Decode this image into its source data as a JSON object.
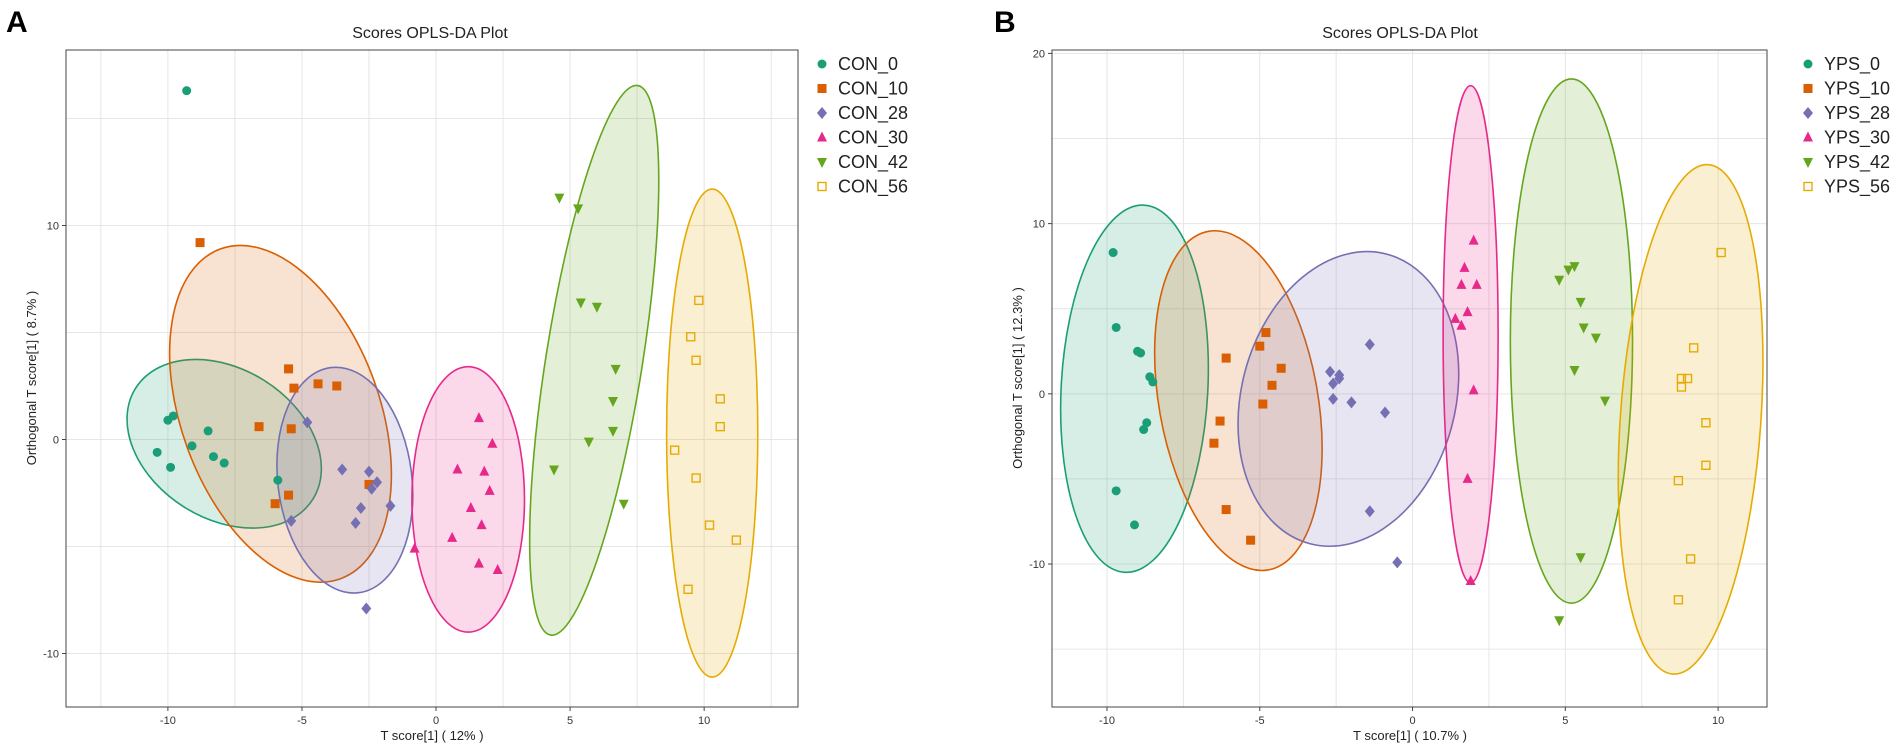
{
  "chart_data": [
    {
      "panel": "A",
      "type": "scatter",
      "title": "Scores OPLS-DA Plot",
      "xlabel": "T score[1] ( 12% )",
      "ylabel": "Orthogonal T score[1] ( 8.7% )",
      "xlim": [
        -13.8,
        13.5
      ],
      "ylim": [
        -12.5,
        18.2
      ],
      "xticks": [
        -10,
        -5,
        0,
        5,
        10
      ],
      "yticks": [
        -10,
        0,
        10
      ],
      "xtick_labels": [
        "-10",
        "-5",
        "0",
        "5",
        "10"
      ],
      "ytick_labels": [
        "-10",
        "0",
        "10"
      ],
      "series": [
        {
          "name": "CON_0",
          "color": "#1b9e77",
          "marker": "circle",
          "points": [
            [
              -9.3,
              16.3
            ],
            [
              -10,
              0.9
            ],
            [
              -9.8,
              1.1
            ],
            [
              -8.5,
              0.4
            ],
            [
              -10.4,
              -0.6
            ],
            [
              -9.9,
              -1.3
            ],
            [
              -9.1,
              -0.3
            ],
            [
              -8.3,
              -0.8
            ],
            [
              -7.9,
              -1.1
            ],
            [
              -5.9,
              -1.9
            ]
          ],
          "ellipse": {
            "cx": -7.9,
            "cy": -0.2,
            "rx": 3.9,
            "ry": 3.5,
            "angle_deg": -32
          }
        },
        {
          "name": "CON_10",
          "color": "#d95f02",
          "marker": "square",
          "points": [
            [
              -8.8,
              9.2
            ],
            [
              -5.5,
              3.3
            ],
            [
              -5.3,
              2.4
            ],
            [
              -4.4,
              2.6
            ],
            [
              -3.7,
              2.5
            ],
            [
              -6.6,
              0.6
            ],
            [
              -5.4,
              0.5
            ],
            [
              -5.5,
              -2.6
            ],
            [
              -6,
              -3
            ],
            [
              -2.5,
              -2.1
            ]
          ],
          "ellipse": {
            "cx": -5.8,
            "cy": 1.2,
            "rx": 3.7,
            "ry": 8.2,
            "angle_deg": 20
          }
        },
        {
          "name": "CON_28",
          "color": "#7570b3",
          "marker": "diamond",
          "points": [
            [
              -4.8,
              0.8
            ],
            [
              -3.5,
              -1.4
            ],
            [
              -2.5,
              -1.5
            ],
            [
              -2.4,
              -2.3
            ],
            [
              -2.2,
              -2
            ],
            [
              -2.8,
              -3.2
            ],
            [
              -3,
              -3.9
            ],
            [
              -1.7,
              -3.1
            ],
            [
              -5.4,
              -3.8
            ],
            [
              -2.6,
              -7.9
            ]
          ],
          "ellipse": {
            "cx": -3.4,
            "cy": -1.9,
            "rx": 2.5,
            "ry": 5.3,
            "angle_deg": 7
          }
        },
        {
          "name": "CON_30",
          "color": "#e7298a",
          "marker": "triangle-up",
          "points": [
            [
              1.6,
              1
            ],
            [
              2.1,
              -0.2
            ],
            [
              0.8,
              -1.4
            ],
            [
              1.8,
              -1.5
            ],
            [
              2,
              -2.4
            ],
            [
              1.3,
              -3.2
            ],
            [
              1.7,
              -4
            ],
            [
              0.6,
              -4.6
            ],
            [
              1.6,
              -5.8
            ],
            [
              2.3,
              -6.1
            ],
            [
              -0.8,
              -5.1
            ]
          ],
          "ellipse": {
            "cx": 1.2,
            "cy": -2.8,
            "rx": 2.1,
            "ry": 6.2,
            "angle_deg": 0
          }
        },
        {
          "name": "CON_42",
          "color": "#66a61e",
          "marker": "triangle-down",
          "points": [
            [
              4.6,
              11.3
            ],
            [
              5.3,
              10.8
            ],
            [
              5.4,
              6.4
            ],
            [
              6,
              6.2
            ],
            [
              6.7,
              3.3
            ],
            [
              6.6,
              1.8
            ],
            [
              6.6,
              0.4
            ],
            [
              5.7,
              -0.1
            ],
            [
              4.4,
              -1.4
            ],
            [
              7,
              -3
            ]
          ],
          "ellipse": {
            "cx": 5.9,
            "cy": 3.7,
            "rx": 1.8,
            "ry": 13.0,
            "angle_deg": -9
          }
        },
        {
          "name": "CON_56",
          "color": "#e6ab02",
          "marker": "square-open",
          "points": [
            [
              9.8,
              6.5
            ],
            [
              9.5,
              4.8
            ],
            [
              9.7,
              3.7
            ],
            [
              10.6,
              1.9
            ],
            [
              10.6,
              0.6
            ],
            [
              8.9,
              -0.5
            ],
            [
              9.7,
              -1.8
            ],
            [
              10.2,
              -4
            ],
            [
              11.2,
              -4.7
            ],
            [
              9.4,
              -7
            ]
          ],
          "ellipse": {
            "cx": 10.3,
            "cy": 0.3,
            "rx": 1.7,
            "ry": 11.4,
            "angle_deg": 0
          }
        }
      ]
    },
    {
      "panel": "B",
      "type": "scatter",
      "title": "Scores OPLS-DA Plot",
      "xlabel": "T score[1] ( 10.7% )",
      "ylabel": "Orthogonal T score[1] ( 12.3% )",
      "xlim": [
        -11.8,
        11.6
      ],
      "ylim": [
        -18.4,
        20.2
      ],
      "xticks": [
        -10,
        -5,
        0,
        5,
        10
      ],
      "yticks": [
        -10,
        0,
        10,
        20
      ],
      "xtick_labels": [
        "-10",
        "-5",
        "0",
        "5",
        "10"
      ],
      "ytick_labels": [
        "-10",
        "0",
        "10",
        "20"
      ],
      "series": [
        {
          "name": "YPS_0",
          "color": "#1b9e77",
          "marker": "circle",
          "points": [
            [
              -9.8,
              8.3
            ],
            [
              -9.7,
              3.9
            ],
            [
              -9,
              2.5
            ],
            [
              -8.9,
              2.4
            ],
            [
              -8.5,
              0.7
            ],
            [
              -8.6,
              1
            ],
            [
              -8.7,
              -1.7
            ],
            [
              -8.8,
              -2.1
            ],
            [
              -9.7,
              -5.7
            ],
            [
              -9.1,
              -7.7
            ]
          ],
          "ellipse": {
            "cx": -9.1,
            "cy": 0.3,
            "rx": 2.4,
            "ry": 10.8,
            "angle_deg": -3
          }
        },
        {
          "name": "YPS_10",
          "color": "#d95f02",
          "marker": "square",
          "points": [
            [
              -4.8,
              3.6
            ],
            [
              -5,
              2.8
            ],
            [
              -6.1,
              2.1
            ],
            [
              -4.3,
              1.5
            ],
            [
              -4.6,
              0.5
            ],
            [
              -4.9,
              -0.6
            ],
            [
              -6.3,
              -1.6
            ],
            [
              -6.5,
              -2.9
            ],
            [
              -6.1,
              -6.8
            ],
            [
              -5.3,
              -8.6
            ]
          ],
          "ellipse": {
            "cx": -5.7,
            "cy": -0.4,
            "rx": 2.6,
            "ry": 10.1,
            "angle_deg": 10
          }
        },
        {
          "name": "YPS_28",
          "color": "#7570b3",
          "marker": "diamond",
          "points": [
            [
              -2.7,
              1.3
            ],
            [
              -2.4,
              1.1
            ],
            [
              -2.4,
              0.9
            ],
            [
              -2.6,
              0.6
            ],
            [
              -2.6,
              -0.3
            ],
            [
              -2,
              -0.5
            ],
            [
              -1.4,
              2.9
            ],
            [
              -0.9,
              -1.1
            ],
            [
              -1.4,
              -6.9
            ],
            [
              -0.5,
              -9.9
            ]
          ],
          "ellipse": {
            "cx": -2.1,
            "cy": -0.3,
            "rx": 3.5,
            "ry": 8.8,
            "angle_deg": -15
          }
        },
        {
          "name": "YPS_30",
          "color": "#e7298a",
          "marker": "triangle-up",
          "points": [
            [
              2,
              9
            ],
            [
              1.7,
              7.4
            ],
            [
              1.6,
              6.4
            ],
            [
              2.1,
              6.4
            ],
            [
              1.8,
              4.8
            ],
            [
              1.4,
              4.4
            ],
            [
              1.6,
              4
            ],
            [
              2,
              0.2
            ],
            [
              1.8,
              -5
            ],
            [
              1.9,
              -11
            ]
          ],
          "ellipse": {
            "cx": 1.9,
            "cy": 3.5,
            "rx": 0.9,
            "ry": 14.6,
            "angle_deg": 0
          }
        },
        {
          "name": "YPS_42",
          "color": "#66a61e",
          "marker": "triangle-down",
          "points": [
            [
              5.3,
              7.5
            ],
            [
              5.1,
              7.3
            ],
            [
              4.8,
              6.7
            ],
            [
              5.5,
              5.4
            ],
            [
              5.6,
              3.9
            ],
            [
              6,
              3.3
            ],
            [
              5.3,
              1.4
            ],
            [
              6.3,
              -0.4
            ],
            [
              5.5,
              -9.6
            ],
            [
              4.8,
              -13.3
            ]
          ],
          "ellipse": {
            "cx": 5.2,
            "cy": 3.1,
            "rx": 2.0,
            "ry": 15.4,
            "angle_deg": 0
          }
        },
        {
          "name": "YPS_56",
          "color": "#e6ab02",
          "marker": "square-open",
          "points": [
            [
              10.1,
              8.3
            ],
            [
              9.2,
              2.7
            ],
            [
              8.8,
              0.9
            ],
            [
              9,
              0.9
            ],
            [
              8.8,
              0.4
            ],
            [
              9.6,
              -1.7
            ],
            [
              9.6,
              -4.2
            ],
            [
              8.7,
              -5.1
            ],
            [
              9.1,
              -9.7
            ],
            [
              8.7,
              -12.1
            ]
          ],
          "ellipse": {
            "cx": 9.1,
            "cy": -1.5,
            "rx": 2.3,
            "ry": 15.0,
            "angle_deg": -4
          }
        }
      ]
    }
  ]
}
